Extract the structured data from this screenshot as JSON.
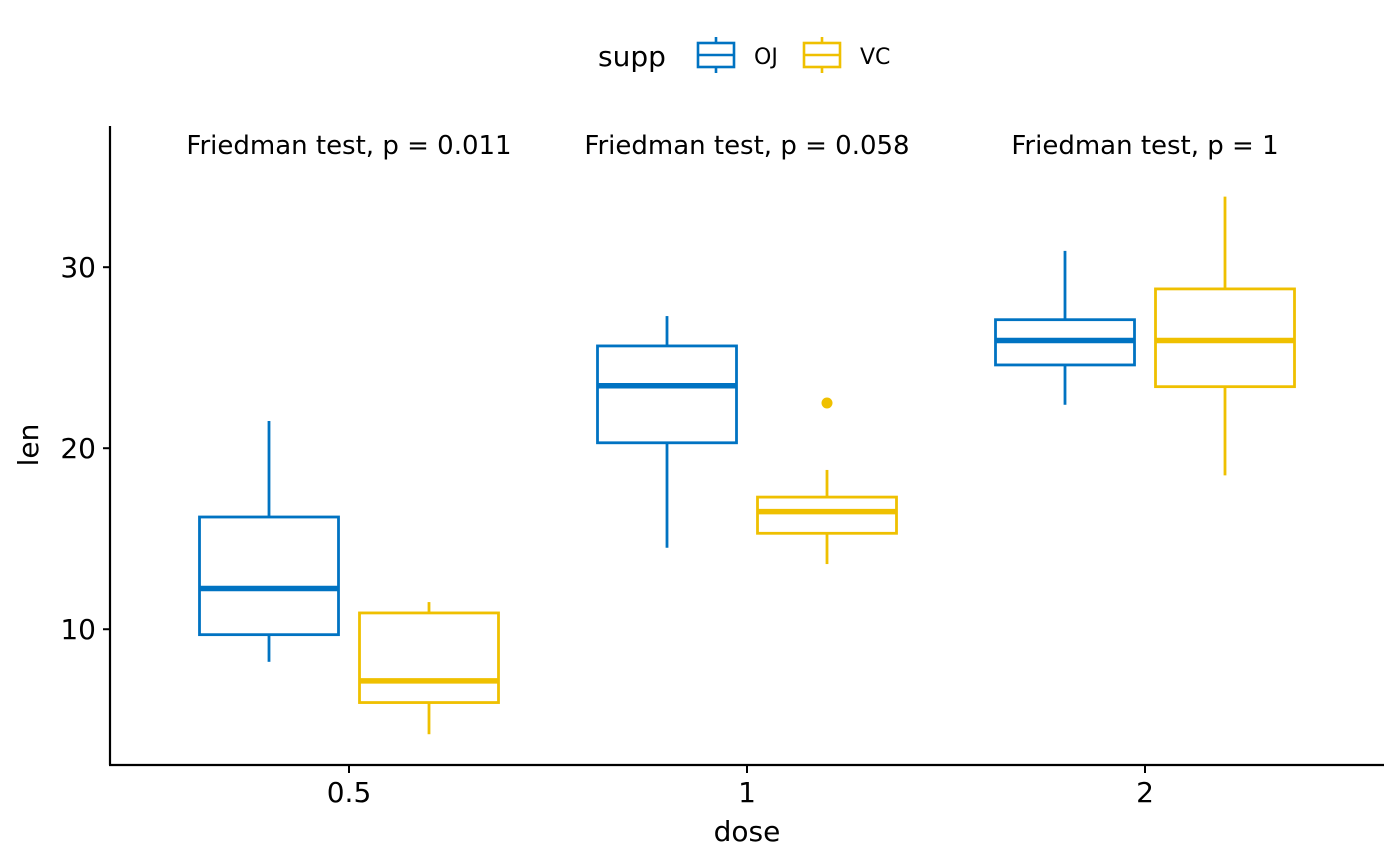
{
  "chart_data": {
    "type": "boxplot",
    "xlabel": "dose",
    "ylabel": "len",
    "x_categories": [
      "0.5",
      "1",
      "2"
    ],
    "y_ticks": [
      10,
      20,
      30
    ],
    "ylim": [
      2.5,
      37.8
    ],
    "grid": false,
    "legend": {
      "title": "supp",
      "position": "top",
      "items": [
        {
          "name": "OJ",
          "color": "#0073C2"
        },
        {
          "name": "VC",
          "color": "#EFC000"
        }
      ]
    },
    "series": [
      {
        "name": "OJ",
        "color": "#0073C2",
        "boxes": [
          {
            "dose": "0.5",
            "lower_whisker": 8.2,
            "q1": 9.7,
            "median": 12.25,
            "q3": 16.2,
            "upper_whisker": 21.5,
            "outliers": []
          },
          {
            "dose": "1",
            "lower_whisker": 14.5,
            "q1": 20.3,
            "median": 23.45,
            "q3": 25.65,
            "upper_whisker": 27.3,
            "outliers": []
          },
          {
            "dose": "2",
            "lower_whisker": 22.4,
            "q1": 24.6,
            "median": 25.95,
            "q3": 27.1,
            "upper_whisker": 30.9,
            "outliers": []
          }
        ]
      },
      {
        "name": "VC",
        "color": "#EFC000",
        "boxes": [
          {
            "dose": "0.5",
            "lower_whisker": 4.2,
            "q1": 5.95,
            "median": 7.15,
            "q3": 10.9,
            "upper_whisker": 11.5,
            "outliers": []
          },
          {
            "dose": "1",
            "lower_whisker": 13.6,
            "q1": 15.3,
            "median": 16.5,
            "q3": 17.3,
            "upper_whisker": 18.8,
            "outliers": [
              22.5
            ]
          },
          {
            "dose": "2",
            "lower_whisker": 18.5,
            "q1": 23.4,
            "median": 25.95,
            "q3": 28.8,
            "upper_whisker": 33.9,
            "outliers": []
          }
        ]
      }
    ],
    "annotations": [
      {
        "dose": "0.5",
        "text": "Friedman test, p = 0.011"
      },
      {
        "dose": "1",
        "text": "Friedman test, p = 0.058"
      },
      {
        "dose": "2",
        "text": "Friedman test, p = 1"
      }
    ]
  }
}
